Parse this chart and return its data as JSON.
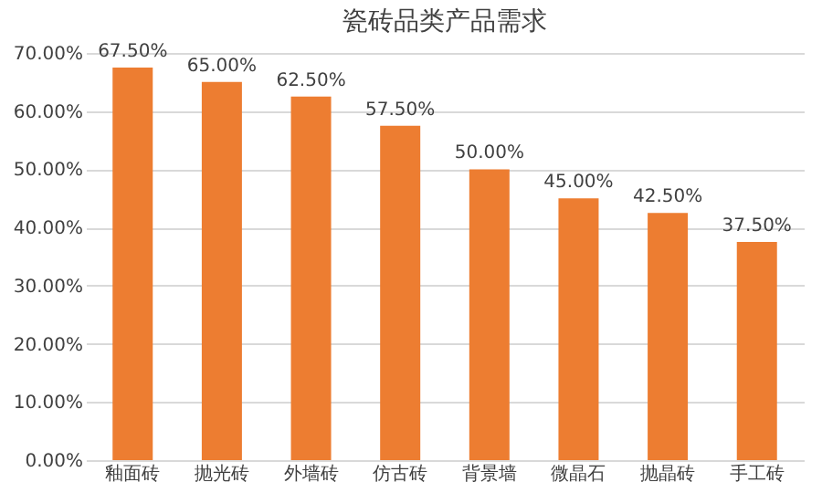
{
  "chart_data": {
    "type": "bar",
    "title": "瓷砖品类产品需求",
    "categories": [
      "釉面砖",
      "抛光砖",
      "外墙砖",
      "仿古砖",
      "背景墙",
      "微晶石",
      "抛晶砖",
      "手工砖"
    ],
    "values": [
      67.5,
      65,
      62.5,
      57.5,
      50,
      45,
      42.5,
      37.5
    ],
    "value_labels": [
      "67.50%",
      "65.00%",
      "62.50%",
      "57.50%",
      "50.00%",
      "45.00%",
      "42.50%",
      "37.50%"
    ],
    "color": "#ed7d31",
    "ylim": [
      0,
      70
    ],
    "yticks": [
      {
        "value": 0,
        "label": "0.00%"
      },
      {
        "value": 10,
        "label": "10.00%"
      },
      {
        "value": 20,
        "label": "20.00%"
      },
      {
        "value": 30,
        "label": "30.00%"
      },
      {
        "value": 40,
        "label": "40.00%"
      },
      {
        "value": 50,
        "label": "50.00%"
      },
      {
        "value": 60,
        "label": "60.00%"
      },
      {
        "value": 70,
        "label": "70.00%"
      }
    ],
    "grid": "y"
  }
}
